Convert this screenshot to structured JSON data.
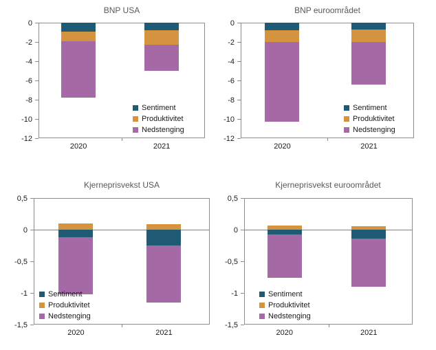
{
  "palette": {
    "Sentiment": "#1f5b74",
    "Produktivitet": "#d5923f",
    "Nedstenging": "#a569a5",
    "axis": "#8c8c8c",
    "zero_line": "#808080",
    "title_text": "#595959",
    "label_text": "#1a1a1a",
    "background": "#ffffff"
  },
  "chart_data": [
    {
      "type": "bar",
      "stacked": true,
      "title": "BNP USA",
      "categories": [
        "2020",
        "2021"
      ],
      "series": [
        {
          "name": "Sentiment",
          "values": [
            -0.9,
            -0.8
          ]
        },
        {
          "name": "Produktivitet",
          "values": [
            -1.0,
            -1.5
          ]
        },
        {
          "name": "Nedstenging",
          "values": [
            -5.9,
            -2.7
          ]
        }
      ],
      "ylim": [
        -12,
        0
      ],
      "ytick_values": [
        0,
        -2,
        -4,
        -6,
        -8,
        -10,
        -12
      ],
      "ytick_labels": [
        "0",
        "-2",
        "-4",
        "-6",
        "-8",
        "-10",
        "-12"
      ],
      "legend": {
        "position": "inside-bottom-right",
        "entries": [
          "Sentiment",
          "Produktivitet",
          "Nedstenging"
        ]
      },
      "grid": false
    },
    {
      "type": "bar",
      "stacked": true,
      "title": "BNP euroområdet",
      "categories": [
        "2020",
        "2021"
      ],
      "series": [
        {
          "name": "Sentiment",
          "values": [
            -0.8,
            -0.7
          ]
        },
        {
          "name": "Produktivitet",
          "values": [
            -1.2,
            -1.3
          ]
        },
        {
          "name": "Nedstenging",
          "values": [
            -8.3,
            -4.4
          ]
        }
      ],
      "ylim": [
        -12,
        0
      ],
      "ytick_values": [
        0,
        -2,
        -4,
        -6,
        -8,
        -10,
        -12
      ],
      "ytick_labels": [
        "0",
        "-2",
        "-4",
        "-6",
        "-8",
        "-10",
        "-12"
      ],
      "legend": {
        "position": "inside-bottom-right",
        "entries": [
          "Sentiment",
          "Produktivitet",
          "Nedstenging"
        ]
      },
      "grid": false
    },
    {
      "type": "bar",
      "stacked": true,
      "title": "Kjerneprisvekst USA",
      "categories": [
        "2020",
        "2021"
      ],
      "series": [
        {
          "name": "Sentiment",
          "values": [
            -0.12,
            -0.25
          ]
        },
        {
          "name": "Produktivitet",
          "values": [
            0.1,
            0.09
          ]
        },
        {
          "name": "Nedstenging",
          "values": [
            -0.9,
            -0.9
          ]
        }
      ],
      "ylim": [
        -1.5,
        0.5
      ],
      "ytick_values": [
        0.5,
        0,
        -0.5,
        -1,
        -1.5
      ],
      "ytick_labels": [
        "0,5",
        "0",
        "-0,5",
        "-1",
        "-1,5"
      ],
      "legend": {
        "position": "inside-bottom-left",
        "entries": [
          "Sentiment",
          "Produktivitet",
          "Nedstenging"
        ]
      },
      "grid": false
    },
    {
      "type": "bar",
      "stacked": true,
      "title": "Kjerneprisvekst euroområdet",
      "categories": [
        "2020",
        "2021"
      ],
      "series": [
        {
          "name": "Sentiment",
          "values": [
            -0.08,
            -0.14
          ]
        },
        {
          "name": "Produktivitet",
          "values": [
            0.06,
            0.05
          ]
        },
        {
          "name": "Nedstenging",
          "values": [
            -0.68,
            -0.76
          ]
        }
      ],
      "ylim": [
        -1.5,
        0.5
      ],
      "ytick_values": [
        0.5,
        0,
        -0.5,
        -1,
        -1.5
      ],
      "ytick_labels": [
        "0,5",
        "0",
        "-0,5",
        "-1",
        "-1,5"
      ],
      "legend": {
        "position": "inside-bottom-left",
        "entries": [
          "Sentiment",
          "Produktivitet",
          "Nedstenging"
        ]
      },
      "grid": false
    }
  ]
}
